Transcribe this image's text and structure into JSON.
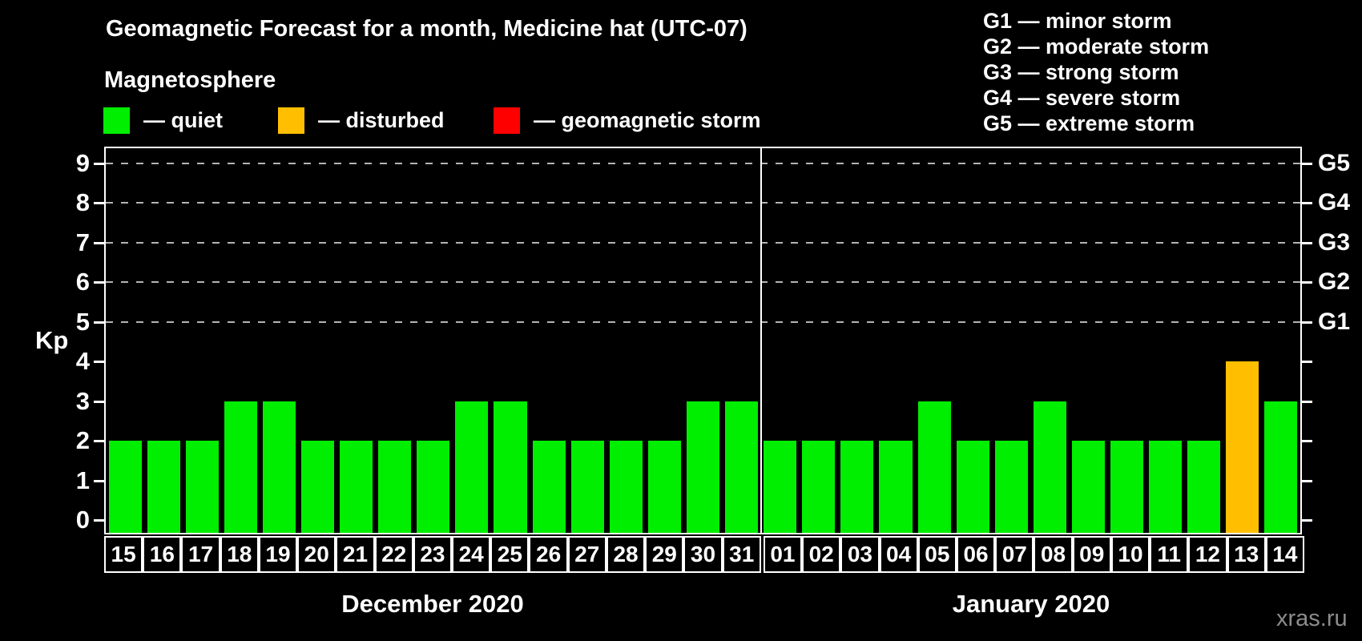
{
  "title": "Geomagnetic Forecast for a month, Medicine hat (UTC-07)",
  "subtitle": "Magnetosphere",
  "legend": {
    "items": [
      {
        "key": "quiet",
        "label": "— quiet",
        "color": "#00ee00"
      },
      {
        "key": "disturbed",
        "label": "— disturbed",
        "color": "#ffbf00"
      },
      {
        "key": "storm",
        "label": "— geomagnetic storm",
        "color": "#ff0000"
      }
    ]
  },
  "g_legend": [
    "G1 — minor storm",
    "G2 — moderate storm",
    "G3 — strong storm",
    "G4 — severe storm",
    "G5 — extreme storm"
  ],
  "watermark": "xras.ru",
  "chart_data": {
    "type": "bar",
    "ylabel": "Kp",
    "ylim": [
      0,
      9
    ],
    "yticks": [
      0,
      1,
      2,
      3,
      4,
      5,
      6,
      7,
      8,
      9
    ],
    "grid_levels": [
      5,
      6,
      7,
      8,
      9
    ],
    "grid_style": "dashed",
    "right_axis": [
      {
        "kp": 5,
        "label": "G1"
      },
      {
        "kp": 6,
        "label": "G2"
      },
      {
        "kp": 7,
        "label": "G3"
      },
      {
        "kp": 8,
        "label": "G4"
      },
      {
        "kp": 9,
        "label": "G5"
      }
    ],
    "status_colors": {
      "quiet": "#00ee00",
      "disturbed": "#ffbf00",
      "storm": "#ff0000"
    },
    "months": [
      {
        "label": "December 2020",
        "bars": [
          {
            "day": "15",
            "kp": 2,
            "status": "quiet"
          },
          {
            "day": "16",
            "kp": 2,
            "status": "quiet"
          },
          {
            "day": "17",
            "kp": 2,
            "status": "quiet"
          },
          {
            "day": "18",
            "kp": 3,
            "status": "quiet"
          },
          {
            "day": "19",
            "kp": 3,
            "status": "quiet"
          },
          {
            "day": "20",
            "kp": 2,
            "status": "quiet"
          },
          {
            "day": "21",
            "kp": 2,
            "status": "quiet"
          },
          {
            "day": "22",
            "kp": 2,
            "status": "quiet"
          },
          {
            "day": "23",
            "kp": 2,
            "status": "quiet"
          },
          {
            "day": "24",
            "kp": 3,
            "status": "quiet"
          },
          {
            "day": "25",
            "kp": 3,
            "status": "quiet"
          },
          {
            "day": "26",
            "kp": 2,
            "status": "quiet"
          },
          {
            "day": "27",
            "kp": 2,
            "status": "quiet"
          },
          {
            "day": "28",
            "kp": 2,
            "status": "quiet"
          },
          {
            "day": "29",
            "kp": 2,
            "status": "quiet"
          },
          {
            "day": "30",
            "kp": 3,
            "status": "quiet"
          },
          {
            "day": "31",
            "kp": 3,
            "status": "quiet"
          }
        ]
      },
      {
        "label": "January 2020",
        "bars": [
          {
            "day": "01",
            "kp": 2,
            "status": "quiet"
          },
          {
            "day": "02",
            "kp": 2,
            "status": "quiet"
          },
          {
            "day": "03",
            "kp": 2,
            "status": "quiet"
          },
          {
            "day": "04",
            "kp": 2,
            "status": "quiet"
          },
          {
            "day": "05",
            "kp": 3,
            "status": "quiet"
          },
          {
            "day": "06",
            "kp": 2,
            "status": "quiet"
          },
          {
            "day": "07",
            "kp": 2,
            "status": "quiet"
          },
          {
            "day": "08",
            "kp": 3,
            "status": "quiet"
          },
          {
            "day": "09",
            "kp": 2,
            "status": "quiet"
          },
          {
            "day": "10",
            "kp": 2,
            "status": "quiet"
          },
          {
            "day": "11",
            "kp": 2,
            "status": "quiet"
          },
          {
            "day": "12",
            "kp": 2,
            "status": "quiet"
          },
          {
            "day": "13",
            "kp": 4,
            "status": "disturbed"
          },
          {
            "day": "14",
            "kp": 3,
            "status": "quiet"
          }
        ]
      }
    ]
  }
}
